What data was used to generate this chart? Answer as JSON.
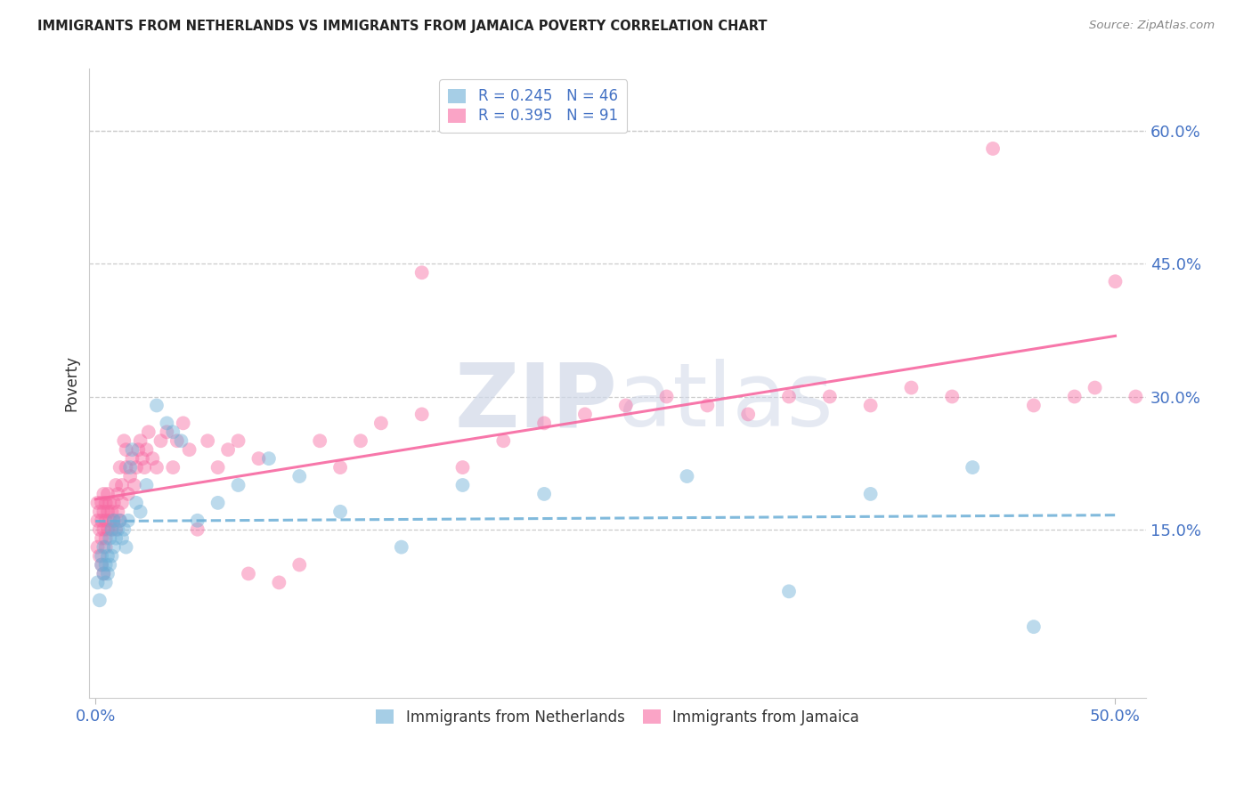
{
  "title": "IMMIGRANTS FROM NETHERLANDS VS IMMIGRANTS FROM JAMAICA POVERTY CORRELATION CHART",
  "source": "Source: ZipAtlas.com",
  "ylabel": "Poverty",
  "ytick_labels": [
    "60.0%",
    "45.0%",
    "30.0%",
    "15.0%"
  ],
  "ytick_values": [
    0.6,
    0.45,
    0.3,
    0.15
  ],
  "xlim": [
    -0.003,
    0.515
  ],
  "ylim": [
    -0.04,
    0.67
  ],
  "color_netherlands": "#6baed6",
  "color_jamaica": "#f768a1",
  "watermark_zip": "ZIP",
  "watermark_atlas": "atlas",
  "netherlands_R": 0.245,
  "netherlands_N": 46,
  "jamaica_R": 0.395,
  "jamaica_N": 91,
  "netherlands_x": [
    0.001,
    0.002,
    0.003,
    0.003,
    0.004,
    0.004,
    0.005,
    0.005,
    0.006,
    0.006,
    0.007,
    0.007,
    0.008,
    0.008,
    0.009,
    0.009,
    0.01,
    0.011,
    0.012,
    0.013,
    0.014,
    0.015,
    0.016,
    0.017,
    0.018,
    0.02,
    0.022,
    0.025,
    0.03,
    0.035,
    0.038,
    0.042,
    0.05,
    0.06,
    0.07,
    0.085,
    0.1,
    0.12,
    0.15,
    0.18,
    0.22,
    0.29,
    0.34,
    0.38,
    0.43,
    0.46
  ],
  "netherlands_y": [
    0.09,
    0.07,
    0.11,
    0.12,
    0.1,
    0.13,
    0.09,
    0.11,
    0.1,
    0.12,
    0.11,
    0.14,
    0.12,
    0.15,
    0.13,
    0.16,
    0.14,
    0.15,
    0.16,
    0.14,
    0.15,
    0.13,
    0.16,
    0.22,
    0.24,
    0.18,
    0.17,
    0.2,
    0.29,
    0.27,
    0.26,
    0.25,
    0.16,
    0.18,
    0.2,
    0.23,
    0.21,
    0.17,
    0.13,
    0.2,
    0.19,
    0.21,
    0.08,
    0.19,
    0.22,
    0.04
  ],
  "jamaica_x": [
    0.001,
    0.001,
    0.002,
    0.002,
    0.003,
    0.003,
    0.003,
    0.004,
    0.004,
    0.004,
    0.005,
    0.005,
    0.005,
    0.006,
    0.006,
    0.006,
    0.007,
    0.007,
    0.008,
    0.008,
    0.009,
    0.009,
    0.01,
    0.01,
    0.011,
    0.011,
    0.012,
    0.012,
    0.013,
    0.013,
    0.014,
    0.015,
    0.015,
    0.016,
    0.017,
    0.018,
    0.019,
    0.02,
    0.021,
    0.022,
    0.023,
    0.024,
    0.025,
    0.026,
    0.028,
    0.03,
    0.032,
    0.035,
    0.038,
    0.04,
    0.043,
    0.046,
    0.05,
    0.055,
    0.06,
    0.065,
    0.07,
    0.075,
    0.08,
    0.09,
    0.1,
    0.11,
    0.12,
    0.13,
    0.14,
    0.16,
    0.18,
    0.2,
    0.22,
    0.24,
    0.26,
    0.28,
    0.3,
    0.32,
    0.34,
    0.36,
    0.38,
    0.4,
    0.42,
    0.44,
    0.46,
    0.48,
    0.49,
    0.5,
    0.51,
    0.001,
    0.002,
    0.003,
    0.004,
    0.005,
    0.16
  ],
  "jamaica_y": [
    0.16,
    0.18,
    0.15,
    0.17,
    0.14,
    0.16,
    0.18,
    0.15,
    0.17,
    0.19,
    0.14,
    0.16,
    0.18,
    0.15,
    0.17,
    0.19,
    0.16,
    0.18,
    0.15,
    0.17,
    0.16,
    0.18,
    0.15,
    0.2,
    0.17,
    0.19,
    0.16,
    0.22,
    0.18,
    0.2,
    0.25,
    0.22,
    0.24,
    0.19,
    0.21,
    0.23,
    0.2,
    0.22,
    0.24,
    0.25,
    0.23,
    0.22,
    0.24,
    0.26,
    0.23,
    0.22,
    0.25,
    0.26,
    0.22,
    0.25,
    0.27,
    0.24,
    0.15,
    0.25,
    0.22,
    0.24,
    0.25,
    0.1,
    0.23,
    0.09,
    0.11,
    0.25,
    0.22,
    0.25,
    0.27,
    0.28,
    0.22,
    0.25,
    0.27,
    0.28,
    0.29,
    0.3,
    0.29,
    0.28,
    0.3,
    0.3,
    0.29,
    0.31,
    0.3,
    0.58,
    0.29,
    0.3,
    0.31,
    0.43,
    0.3,
    0.13,
    0.12,
    0.11,
    0.1,
    0.13,
    0.44
  ]
}
